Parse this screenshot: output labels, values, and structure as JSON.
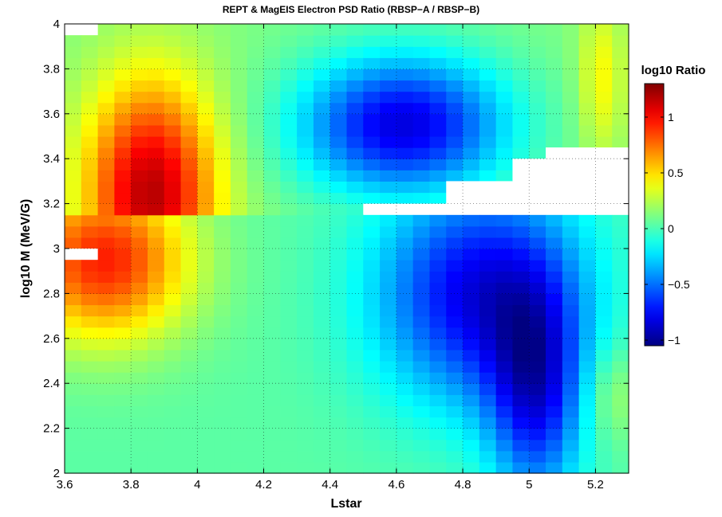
{
  "chart_data": {
    "type": "heatmap",
    "title": "REPT & MagEIS Electron PSD Ratio (RBSP−A / RBSP−B)",
    "xlabel": "Lstar",
    "ylabel": "log10 M (MeV/G)",
    "xlim": [
      3.6,
      5.3
    ],
    "ylim": [
      2,
      4
    ],
    "x_ticks": [
      3.6,
      3.8,
      4,
      4.2,
      4.4,
      4.6,
      4.8,
      5,
      5.2
    ],
    "x_tick_labels": [
      "3.6",
      "3.8",
      "4",
      "4.2",
      "4.4",
      "4.6",
      "4.8",
      "5",
      "5.2"
    ],
    "y_ticks": [
      2,
      2.2,
      2.4,
      2.6,
      2.8,
      3,
      3.2,
      3.4,
      3.6,
      3.8,
      4
    ],
    "y_tick_labels": [
      "2",
      "2.2",
      "2.4",
      "2.6",
      "2.8",
      "3",
      "3.2",
      "3.4",
      "3.6",
      "3.8",
      "4"
    ],
    "x_bin_width": 0.05,
    "y_bin_width": 0.05,
    "lower_block_y_top": 3.15,
    "nan_regions": [
      {
        "x": [
          3.6,
          3.7
        ],
        "y": [
          3.95,
          4.0
        ]
      },
      {
        "x": [
          3.6,
          3.7
        ],
        "y": [
          2.95,
          3.0
        ]
      },
      {
        "x": [
          4.5,
          5.3
        ],
        "y": [
          3.15,
          3.2
        ]
      },
      {
        "x": [
          4.75,
          5.3
        ],
        "y": [
          3.2,
          3.3
        ]
      },
      {
        "x": [
          4.95,
          5.3
        ],
        "y": [
          3.3,
          3.4
        ]
      },
      {
        "x": [
          5.05,
          5.3
        ],
        "y": [
          3.4,
          3.45
        ]
      }
    ],
    "colorbar": {
      "title": "log10 Ratio",
      "range": [
        -1.05,
        1.3
      ],
      "ticks": [
        -1,
        -0.5,
        0,
        0.5,
        1
      ],
      "tick_labels": [
        "−1",
        "−0.5",
        "0",
        "0.5",
        "1"
      ],
      "colormap": "jet"
    },
    "features": [
      {
        "region": "upper",
        "kind": "peak",
        "x": 3.86,
        "y": 3.25,
        "value": 1.05,
        "sx": 0.14,
        "sy": 0.35
      },
      {
        "region": "upper",
        "kind": "peak",
        "x": 3.78,
        "y": 3.0,
        "value": 1.25,
        "sx": 0.06,
        "sy": 0.04
      },
      {
        "region": "upper",
        "kind": "peak",
        "x": 4.62,
        "y": 3.55,
        "value": -0.95,
        "sx": 0.22,
        "sy": 0.22
      },
      {
        "region": "upper",
        "kind": "peak",
        "x": 5.22,
        "y": 3.75,
        "value": 0.3,
        "sx": 0.05,
        "sy": 0.25
      },
      {
        "region": "lower",
        "kind": "peak",
        "x": 3.72,
        "y": 2.95,
        "value": 0.9,
        "sx": 0.18,
        "sy": 0.25
      },
      {
        "region": "lower",
        "kind": "peak",
        "x": 4.85,
        "y": 2.8,
        "value": -0.85,
        "sx": 0.22,
        "sy": 0.35
      },
      {
        "region": "lower",
        "kind": "peak",
        "x": 5.02,
        "y": 2.35,
        "value": -0.7,
        "sx": 0.1,
        "sy": 0.35
      },
      {
        "region": "lower",
        "kind": "peak",
        "x": 5.25,
        "y": 2.35,
        "value": 0.2,
        "sx": 0.06,
        "sy": 0.15
      }
    ]
  }
}
